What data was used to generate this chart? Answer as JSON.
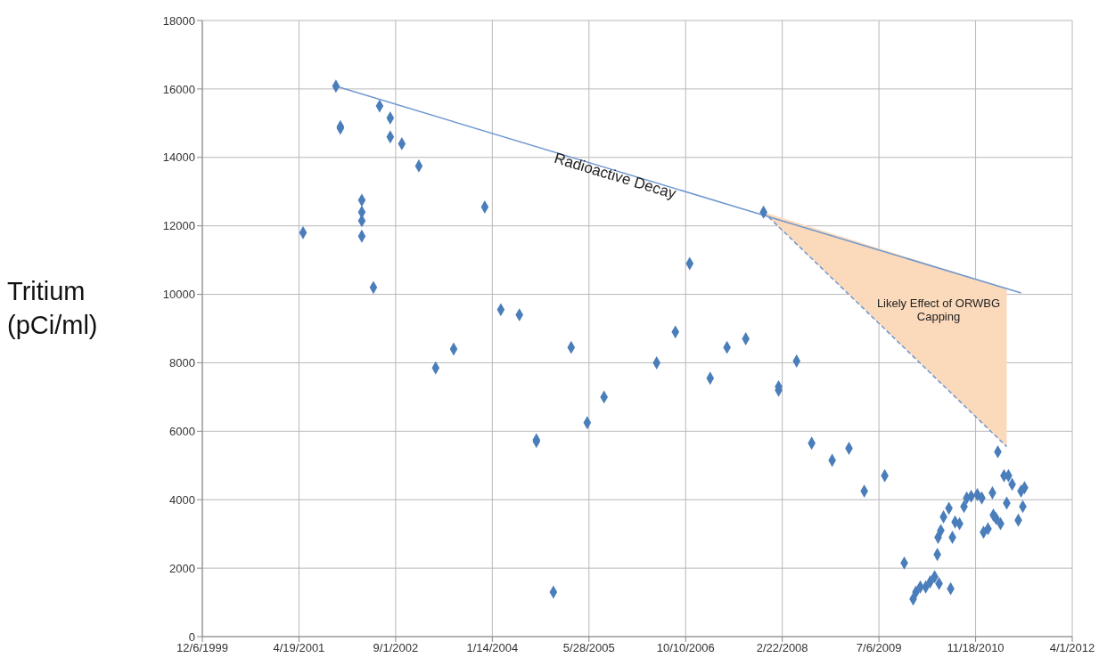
{
  "chart_data": {
    "type": "scatter",
    "ylabel": "Tritium (pCi/ml)",
    "annotations": [
      "Radioactive Decay",
      "Likely Effect of ORWBG Capping"
    ],
    "xlim": [
      "1999-12-06",
      "2012-04-01"
    ],
    "xticks": [
      {
        "value": "1999-12-06",
        "label": "12/6/1999"
      },
      {
        "value": "2001-04-19",
        "label": "4/19/2001"
      },
      {
        "value": "2002-09-01",
        "label": "9/1/2002"
      },
      {
        "value": "2004-01-14",
        "label": "1/14/2004"
      },
      {
        "value": "2005-05-28",
        "label": "5/28/2005"
      },
      {
        "value": "2006-10-10",
        "label": "10/10/2006"
      },
      {
        "value": "2008-02-22",
        "label": "2/22/2008"
      },
      {
        "value": "2009-07-06",
        "label": "7/6/2009"
      },
      {
        "value": "2010-11-18",
        "label": "11/18/2010"
      },
      {
        "value": "2012-04-01",
        "label": "4/1/2012"
      }
    ],
    "ylim": [
      0,
      18000
    ],
    "yticks": [
      0,
      2000,
      4000,
      6000,
      8000,
      10000,
      12000,
      14000,
      16000,
      18000
    ],
    "grid": true,
    "series": [
      {
        "marker": "diamond",
        "color": "#4a7ebb",
        "x": [
          "2001-05-10",
          "2001-10-27",
          "2001-11-19",
          "2001-11-19",
          "2002-03-10",
          "2002-03-10",
          "2002-03-10",
          "2002-03-10",
          "2002-05-09",
          "2002-06-10",
          "2002-08-04",
          "2002-08-04",
          "2002-10-03",
          "2002-12-30",
          "2003-03-27",
          "2003-06-28",
          "2003-12-06",
          "2004-02-27",
          "2004-06-02",
          "2004-08-29",
          "2004-08-29",
          "2004-11-25",
          "2005-02-25",
          "2005-05-19",
          "2005-08-14",
          "2006-05-13",
          "2006-08-18",
          "2006-10-31",
          "2007-02-14",
          "2007-05-12",
          "2007-08-17",
          "2007-11-17",
          "2008-02-03",
          "2008-02-03",
          "2008-05-06",
          "2008-07-23",
          "2008-11-06",
          "2009-02-01",
          "2009-04-21",
          "2009-08-05",
          "2009-11-14",
          "2009-12-30",
          "2010-01-13",
          "2010-02-05",
          "2010-03-05",
          "2010-03-28",
          "2010-04-20",
          "2010-05-04",
          "2010-05-08",
          "2010-05-13",
          "2010-05-22",
          "2010-06-05",
          "2010-07-03",
          "2010-07-12",
          "2010-07-21",
          "2010-08-04",
          "2010-08-27",
          "2010-09-19",
          "2010-10-03",
          "2010-10-26",
          "2010-11-27",
          "2010-12-20",
          "2010-12-29",
          "2011-01-21",
          "2011-02-13",
          "2011-02-18",
          "2011-03-04",
          "2011-03-13",
          "2011-03-27",
          "2011-04-14",
          "2011-04-28",
          "2011-05-07",
          "2011-05-26",
          "2011-06-27",
          "2011-07-11",
          "2011-07-20",
          "2011-07-29"
        ],
        "values": [
          11800,
          16080,
          14900,
          14850,
          12750,
          12400,
          12150,
          11700,
          10200,
          15500,
          15150,
          14600,
          14400,
          13750,
          7850,
          8400,
          12550,
          9550,
          9400,
          5750,
          5700,
          1300,
          8450,
          6250,
          7000,
          8000,
          8900,
          10900,
          7550,
          8450,
          8700,
          12400,
          7300,
          7200,
          8050,
          5650,
          5150,
          5500,
          4250,
          4700,
          2150,
          1100,
          1300,
          1450,
          1450,
          1600,
          1750,
          2400,
          2900,
          1550,
          3100,
          3500,
          3750,
          1400,
          2900,
          3350,
          3300,
          3800,
          4050,
          4100,
          4150,
          4050,
          3050,
          3150,
          4200,
          3550,
          3450,
          5400,
          3300,
          4700,
          3900,
          4700,
          4450,
          3400,
          4250,
          3800,
          4350
        ]
      },
      {
        "type": "line",
        "color": "#6f98cf",
        "line_style": "solid",
        "marker": "none",
        "x": [
          "2001-10-27",
          "2011-07-11"
        ],
        "values": [
          16080,
          10040
        ]
      },
      {
        "type": "line",
        "color": "#6f98cf",
        "line_style": "dashed",
        "marker": "none",
        "x": [
          "2007-11-17",
          "2011-04-28"
        ],
        "values": [
          12400,
          5550
        ],
        "lower": [
          12400,
          5550
        ],
        "upper": [
          12400,
          10170
        ]
      }
    ]
  }
}
